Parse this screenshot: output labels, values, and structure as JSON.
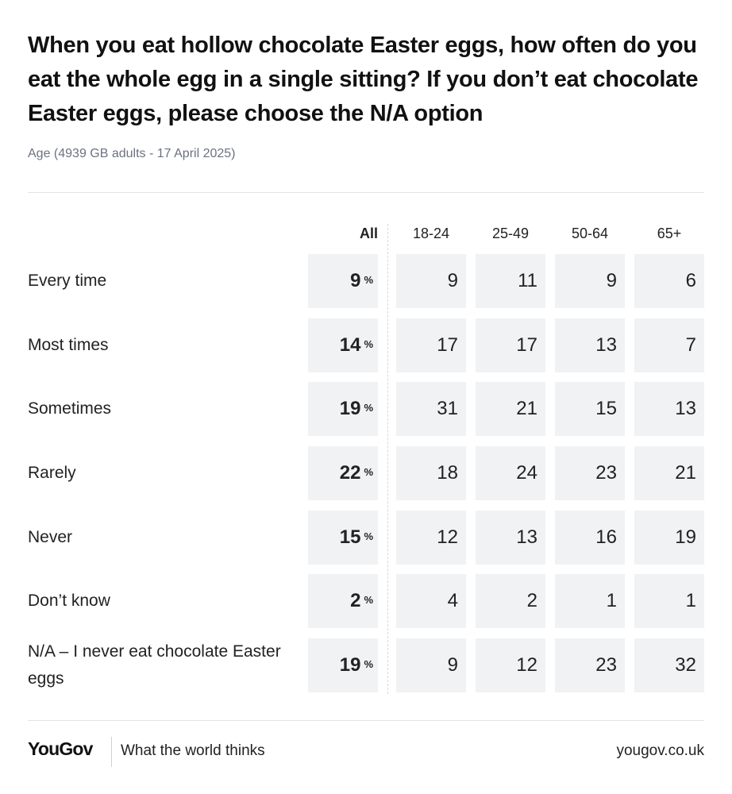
{
  "header": {
    "title": "When you eat hollow chocolate Easter eggs, how often do you eat the whole egg in a single sitting? If you don’t eat chocolate Easter eggs, please choose the N/A option",
    "subtitle": "Age (4939 GB adults - 17 April 2025)"
  },
  "chart_data": {
    "type": "table",
    "columns": [
      "All",
      "18-24",
      "25-49",
      "50-64",
      "65+"
    ],
    "percent_symbol": "%",
    "rows": [
      {
        "label": "Every time",
        "values": [
          9,
          9,
          11,
          9,
          6
        ]
      },
      {
        "label": "Most times",
        "values": [
          14,
          17,
          17,
          13,
          7
        ]
      },
      {
        "label": "Sometimes",
        "values": [
          19,
          31,
          21,
          15,
          13
        ]
      },
      {
        "label": "Rarely",
        "values": [
          22,
          18,
          24,
          23,
          21
        ]
      },
      {
        "label": "Never",
        "values": [
          15,
          12,
          13,
          16,
          19
        ]
      },
      {
        "label": "Don’t know",
        "values": [
          2,
          4,
          2,
          1,
          1
        ]
      },
      {
        "label": "N/A – I never eat chocolate Easter eggs",
        "values": [
          19,
          9,
          12,
          23,
          32
        ]
      }
    ]
  },
  "footer": {
    "logo": "YouGov",
    "tagline": "What the world thinks",
    "url": "yougov.co.uk"
  },
  "colors": {
    "cell_background": "#f1f2f4",
    "subtitle_text": "#6b7280",
    "rule": "#e5e5e5"
  }
}
